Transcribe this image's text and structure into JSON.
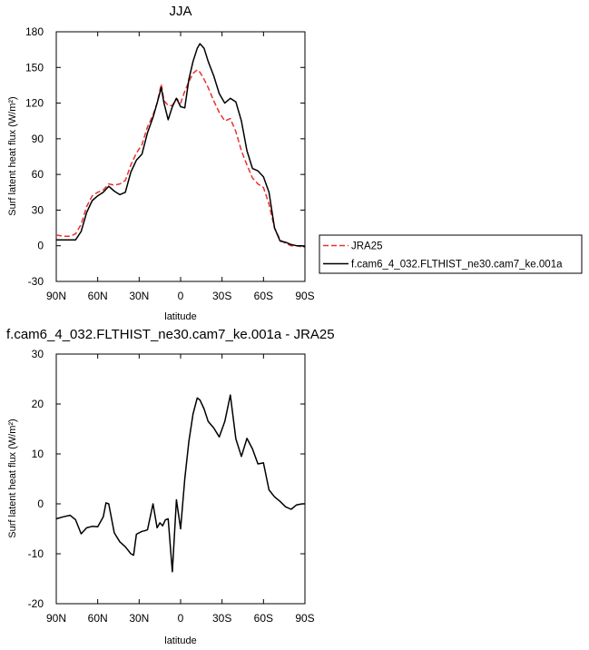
{
  "chart_data": [
    {
      "type": "line",
      "title": "JJA",
      "xlabel": "latitude",
      "ylabel": "Surf latent heat flux (W/m²)",
      "xlim": [
        -90,
        90
      ],
      "ylim": [
        -30,
        180
      ],
      "xticks": [
        -90,
        -60,
        -30,
        0,
        30,
        60,
        90
      ],
      "xticklabels": [
        "90N",
        "60N",
        "30N",
        "0",
        "30S",
        "60S",
        "90S"
      ],
      "yticks": [
        -30,
        0,
        30,
        60,
        90,
        120,
        150,
        180
      ],
      "legend_position": "right",
      "series": [
        {
          "name": "JRA25",
          "color": "#e8322e",
          "dash": true,
          "x": [
            -90,
            -85,
            -80,
            -76,
            -72,
            -68,
            -64,
            -60,
            -56,
            -52,
            -48,
            -44,
            -40,
            -36,
            -32,
            -28,
            -24,
            -20,
            -17,
            -14,
            -12,
            -9,
            -6,
            -3,
            0,
            3,
            6,
            9,
            12,
            14,
            17,
            20,
            24,
            28,
            32,
            36,
            40,
            44,
            48,
            52,
            56,
            60,
            64,
            68,
            72,
            76,
            80,
            84,
            88,
            90
          ],
          "y": [
            9,
            8,
            8,
            10,
            18,
            33,
            42,
            45,
            47,
            52,
            51,
            52,
            55,
            68,
            78,
            85,
            100,
            110,
            120,
            136,
            122,
            118,
            118,
            124,
            120,
            130,
            138,
            145,
            148,
            146,
            140,
            133,
            122,
            112,
            105,
            107,
            96,
            80,
            68,
            57,
            52,
            49,
            35,
            15,
            5,
            2,
            0,
            0,
            -1,
            -1
          ]
        },
        {
          "name": "f.cam6_4_032.FLTHIST_ne30.cam7_ke.001a",
          "color": "#000000",
          "dash": false,
          "x": [
            -90,
            -85,
            -80,
            -76,
            -72,
            -68,
            -64,
            -60,
            -56,
            -52,
            -48,
            -44,
            -40,
            -36,
            -32,
            -28,
            -24,
            -20,
            -17,
            -14,
            -12,
            -9,
            -6,
            -3,
            0,
            3,
            6,
            9,
            12,
            14,
            17,
            20,
            24,
            28,
            32,
            36,
            40,
            44,
            48,
            52,
            56,
            60,
            64,
            68,
            72,
            76,
            80,
            84,
            88,
            90
          ],
          "y": [
            5,
            5,
            5,
            5,
            12,
            28,
            38,
            42,
            45,
            50,
            46,
            43,
            45,
            62,
            72,
            77,
            95,
            108,
            120,
            133,
            120,
            106,
            117,
            124,
            117,
            116,
            140,
            155,
            166,
            170,
            166,
            155,
            143,
            128,
            120,
            124,
            121,
            105,
            80,
            65,
            63,
            58,
            45,
            15,
            4,
            3,
            1,
            0,
            0,
            -1
          ]
        }
      ]
    },
    {
      "type": "line",
      "title": "f.cam6_4_032.FLTHIST_ne30.cam7_ke.001a - JRA25",
      "xlabel": "latitude",
      "ylabel": "Surf latent heat flux (W/m²)",
      "xlim": [
        -90,
        90
      ],
      "ylim": [
        -20,
        30
      ],
      "xticks": [
        -90,
        -60,
        -30,
        0,
        30,
        60,
        90
      ],
      "xticklabels": [
        "90N",
        "60N",
        "30N",
        "0",
        "30S",
        "60S",
        "90S"
      ],
      "yticks": [
        -20,
        -10,
        0,
        10,
        20,
        30
      ],
      "series": [
        {
          "color": "#000000",
          "dash": false,
          "x": [
            -90,
            -85,
            -80,
            -76,
            -72,
            -68,
            -64,
            -60,
            -56,
            -54,
            -52,
            -48,
            -44,
            -40,
            -36,
            -34,
            -32,
            -28,
            -26,
            -24,
            -20,
            -17,
            -15,
            -13,
            -11,
            -9,
            -6,
            -3,
            0,
            3,
            6,
            9,
            12,
            14,
            17,
            20,
            24,
            28,
            32,
            36,
            40,
            44,
            48,
            52,
            56,
            60,
            64,
            68,
            72,
            76,
            80,
            84,
            88,
            90
          ],
          "y": [
            -3,
            -2.6,
            -2.3,
            -3.2,
            -6,
            -4.8,
            -4.5,
            -4.6,
            -2.6,
            0.2,
            0,
            -5.8,
            -7.6,
            -8.6,
            -10,
            -10.3,
            -6.1,
            -5.5,
            -5.4,
            -5.2,
            0,
            -4.8,
            -3.8,
            -4.4,
            -3.2,
            -3,
            -13.6,
            0.8,
            -5,
            5,
            12.5,
            18,
            21.2,
            20.8,
            19,
            16.5,
            15.2,
            13.4,
            16.5,
            21.8,
            13,
            9.5,
            13.1,
            11,
            8,
            8.2,
            2.8,
            1.4,
            0.5,
            -0.6,
            -1.1,
            -0.2,
            0,
            0
          ]
        }
      ]
    }
  ]
}
